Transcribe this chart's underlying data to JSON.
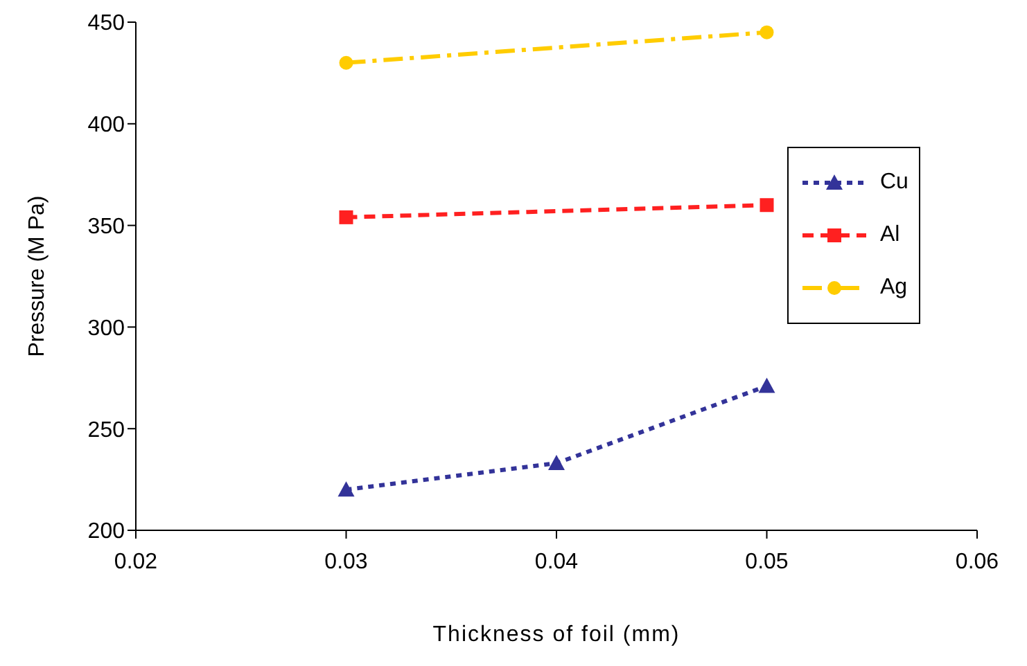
{
  "chart_data": {
    "type": "line",
    "xlabel": "Thickness of foil (mm)",
    "ylabel": "Pressure (M Pa)",
    "xlim": [
      0.02,
      0.06
    ],
    "xticks": [
      0.02,
      0.03,
      0.04,
      0.05,
      0.06
    ],
    "ylim": [
      200,
      450
    ],
    "yticks": [
      200,
      250,
      300,
      350,
      400,
      450
    ],
    "grid": false,
    "legend": "right",
    "series": [
      {
        "name": "Cu",
        "color": "#333399",
        "x": [
          0.03,
          0.04,
          0.05
        ],
        "values": [
          220,
          233,
          271
        ],
        "marker": "triangle",
        "line_style": "dotted"
      },
      {
        "name": "Al",
        "color": "#ff2020",
        "x": [
          0.03,
          0.05
        ],
        "values": [
          354,
          360
        ],
        "marker": "square",
        "line_style": "dashed"
      },
      {
        "name": "Ag",
        "color": "#ffcc00",
        "x": [
          0.03,
          0.05
        ],
        "values": [
          430,
          445
        ],
        "marker": "circle",
        "line_style": "dashdot"
      }
    ]
  }
}
